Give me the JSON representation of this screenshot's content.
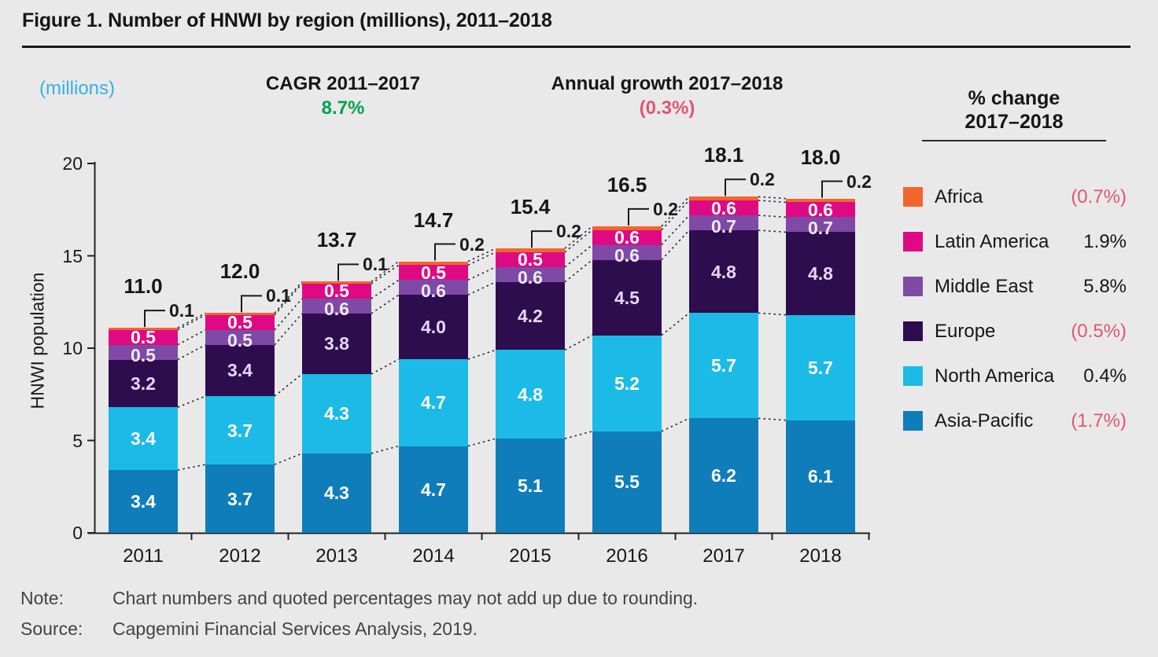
{
  "title": "Figure 1. Number of HNWI by region (millions), 2011–2018",
  "annotations": {
    "y_unit": "(millions)",
    "cagr_label": "CAGR 2011–2017",
    "cagr_value": "8.7%",
    "growth_label": "Annual growth 2017–2018",
    "growth_value": "(0.3%)"
  },
  "legend": {
    "title_line1": "% change",
    "title_line2": "2017–2018",
    "items": [
      {
        "label": "Africa",
        "value": "(0.7%)",
        "color": "#f2662b"
      },
      {
        "label": "Latin America",
        "value": "1.9%",
        "color": "#df0983"
      },
      {
        "label": "Middle East",
        "value": "5.8%",
        "color": "#7e4aa5"
      },
      {
        "label": "Europe",
        "value": "(0.5%)",
        "color": "#2d0d4e"
      },
      {
        "label": "North America",
        "value": "0.4%",
        "color": "#1cbae6"
      },
      {
        "label": "Asia-Pacific",
        "value": "(1.7%)",
        "color": "#0f7dba"
      }
    ]
  },
  "chart_data": {
    "type": "bar",
    "stacked": true,
    "title": "Number of HNWI by region (millions), 2011–2018",
    "ylabel": "HNWI population",
    "ylim": [
      0,
      20
    ],
    "yticks": [
      0,
      5,
      10,
      15,
      20
    ],
    "grid": false,
    "categories": [
      "2011",
      "2012",
      "2013",
      "2014",
      "2015",
      "2016",
      "2017",
      "2018"
    ],
    "totals": [
      11.0,
      12.0,
      13.7,
      14.7,
      15.4,
      16.5,
      18.1,
      18.0
    ],
    "series": [
      {
        "name": "Asia-Pacific",
        "color": "#0f7dba",
        "label_style": "inside",
        "label_color": "#ffffff",
        "values": [
          3.4,
          3.7,
          4.3,
          4.7,
          5.1,
          5.5,
          6.2,
          6.1
        ]
      },
      {
        "name": "North America",
        "color": "#1cbae6",
        "label_style": "inside",
        "label_color": "#ffffff",
        "values": [
          3.4,
          3.7,
          4.3,
          4.7,
          4.8,
          5.2,
          5.7,
          5.7
        ]
      },
      {
        "name": "Europe",
        "color": "#2d0d4e",
        "label_style": "inside",
        "label_color": "#e6d7f4",
        "values": [
          3.2,
          3.4,
          3.8,
          4.0,
          4.2,
          4.5,
          4.8,
          4.8
        ]
      },
      {
        "name": "Middle East",
        "color": "#7e4aa5",
        "label_style": "inside",
        "label_color": "#f2e9fa",
        "values": [
          0.5,
          0.5,
          0.6,
          0.6,
          0.6,
          0.6,
          0.7,
          0.7
        ]
      },
      {
        "name": "Latin America",
        "color": "#df0983",
        "label_style": "inside",
        "label_color": "#ffffff",
        "values": [
          0.5,
          0.5,
          0.5,
          0.5,
          0.5,
          0.6,
          0.6,
          0.6
        ]
      },
      {
        "name": "Africa",
        "color": "#f2662b",
        "label_style": "callout",
        "label_color": "#1a1a1a",
        "values": [
          0.1,
          0.1,
          0.1,
          0.2,
          0.2,
          0.2,
          0.2,
          0.2
        ]
      }
    ],
    "annotation_colors": {
      "positive_green": "#00a14e",
      "negative_pink": "#e25571",
      "millions_cyan": "#36b0e2"
    }
  },
  "note": {
    "label": "Note:",
    "text": "Chart numbers and quoted percentages may not add up due to rounding."
  },
  "source": {
    "label": "Source:",
    "text": "Capgemini Financial Services Analysis, 2019."
  }
}
